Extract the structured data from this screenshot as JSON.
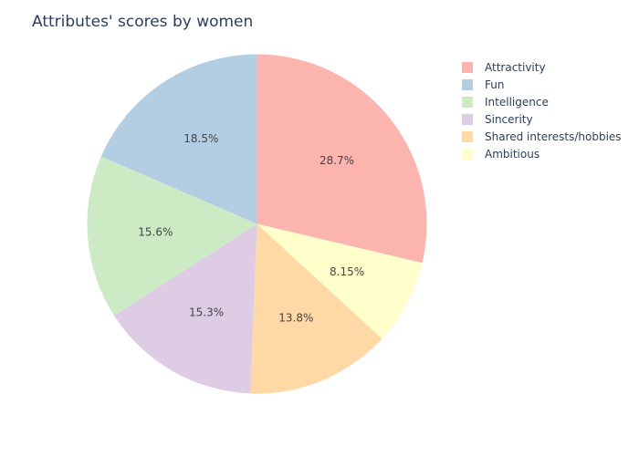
{
  "chart_data": {
    "type": "pie",
    "title": "Attributes' scores by women",
    "legend_position": "top-right",
    "slices": [
      {
        "label": "Attractivity",
        "value": 28.7,
        "display": "28.7%",
        "color": "#fbb4ae"
      },
      {
        "label": "Ambitious",
        "value": 8.15,
        "display": "8.15%",
        "color": "#ffffcc"
      },
      {
        "label": "Shared interests/hobbies",
        "value": 13.8,
        "display": "13.8%",
        "color": "#fed9a6"
      },
      {
        "label": "Sincerity",
        "value": 15.3,
        "display": "15.3%",
        "color": "#decbe4"
      },
      {
        "label": "Intelligence",
        "value": 15.6,
        "display": "15.6%",
        "color": "#ccebc5"
      },
      {
        "label": "Fun",
        "value": 18.5,
        "display": "18.5%",
        "color": "#b3cde3"
      }
    ],
    "legend": [
      {
        "label": "Attractivity",
        "color": "#fbb4ae"
      },
      {
        "label": "Fun",
        "color": "#b3cde3"
      },
      {
        "label": "Intelligence",
        "color": "#ccebc5"
      },
      {
        "label": "Sincerity",
        "color": "#decbe4"
      },
      {
        "label": "Shared interests/hobbies",
        "color": "#fed9a6"
      },
      {
        "label": "Ambitious",
        "color": "#ffffcc"
      }
    ]
  }
}
